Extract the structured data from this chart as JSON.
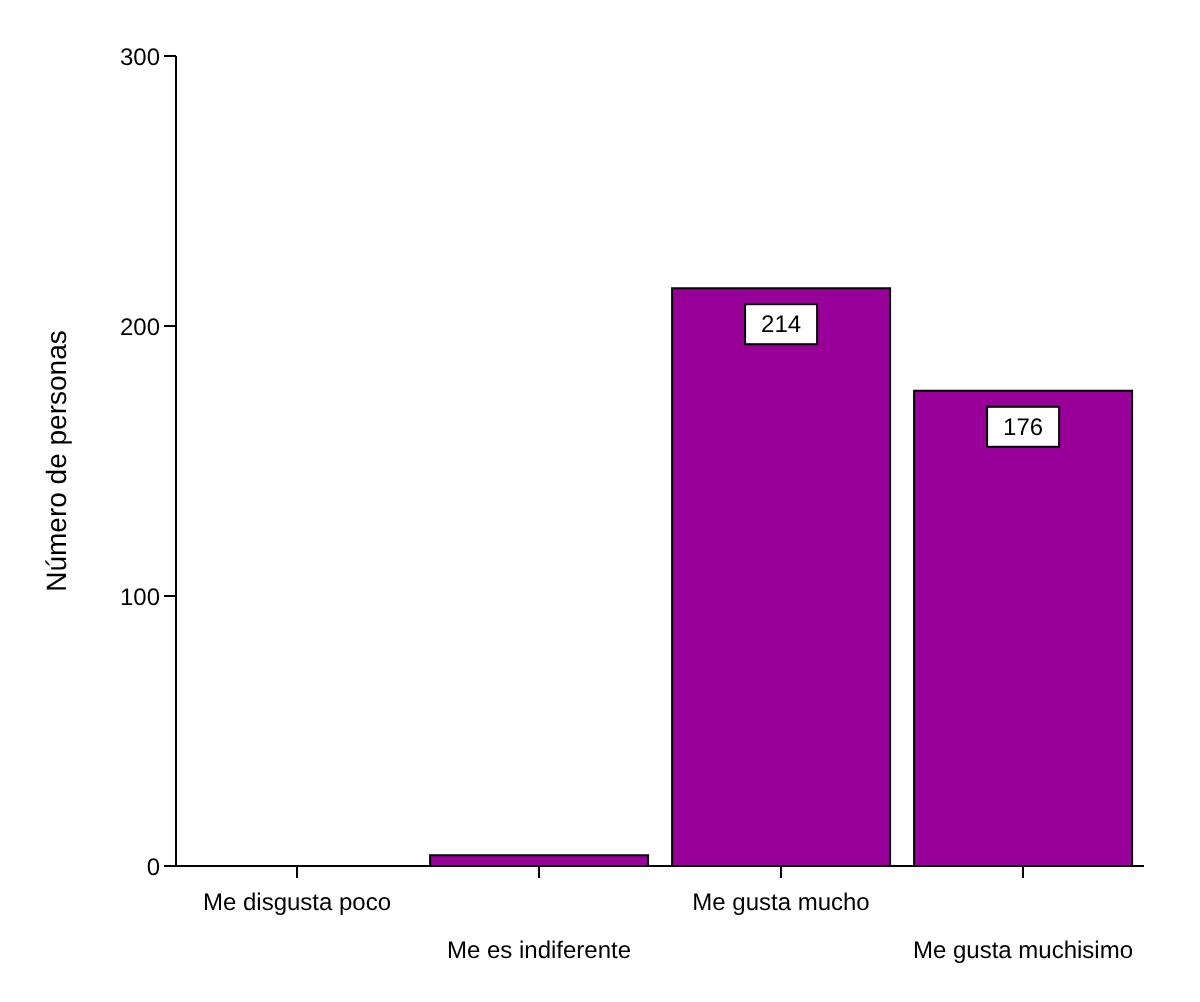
{
  "chart_data": {
    "type": "bar",
    "ylabel": "Número de personas",
    "categories": [
      "Me disgusta poco",
      "Me es indiferente",
      "Me gusta mucho",
      "Me gusta muchisimo"
    ],
    "values": [
      0,
      4,
      214,
      176
    ],
    "value_labels": [
      null,
      null,
      "214",
      "176"
    ],
    "color": "#990099",
    "ylim": [
      0,
      300
    ],
    "yticks": [
      0,
      100,
      200,
      300
    ],
    "grid": false,
    "legend": false
  }
}
